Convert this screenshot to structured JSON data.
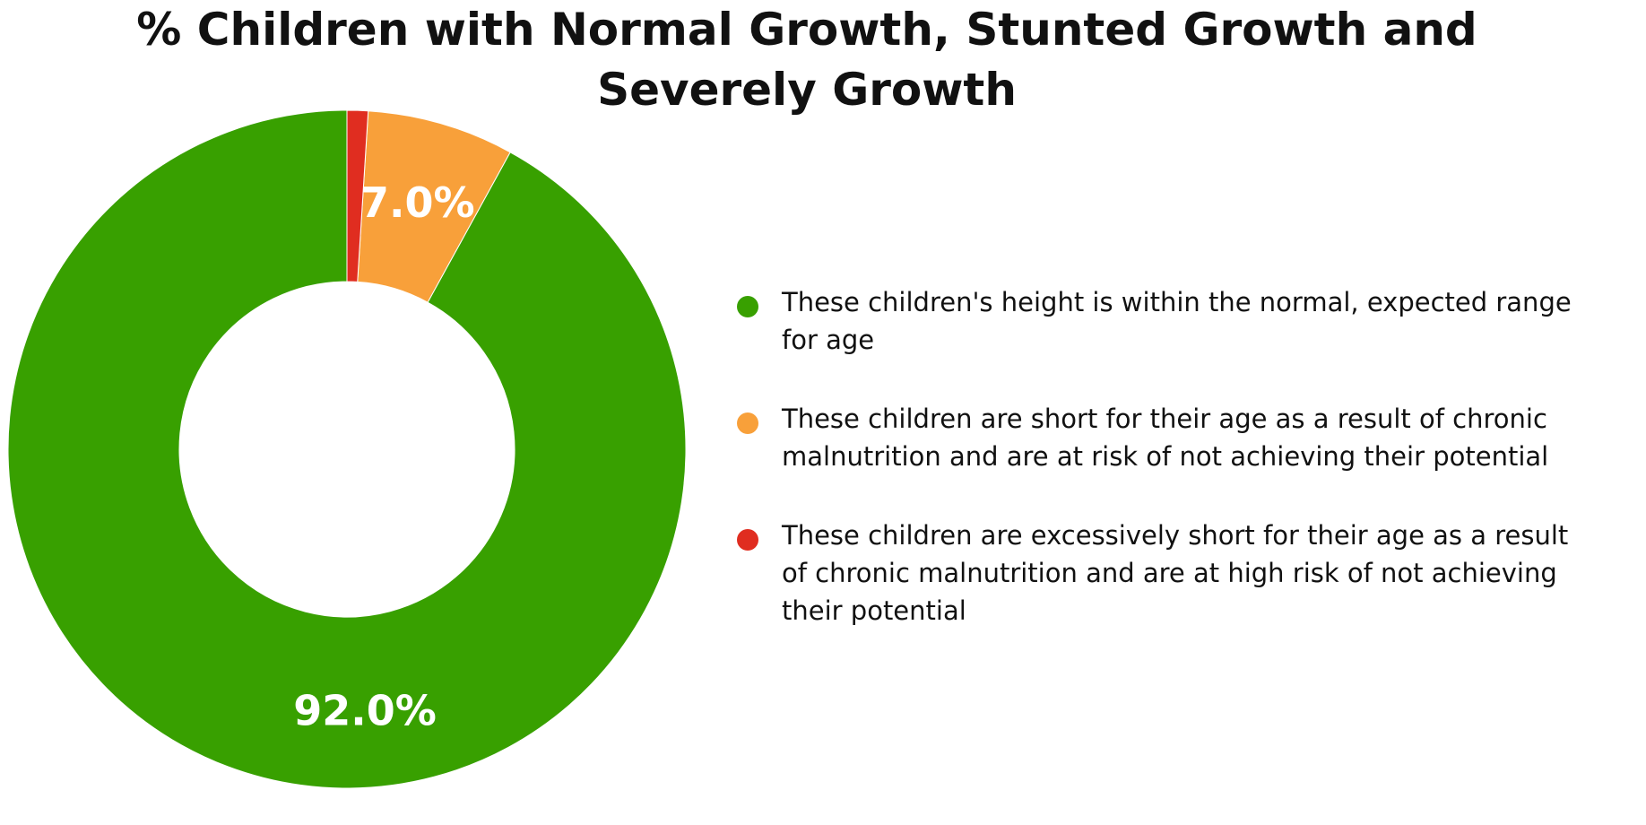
{
  "chart_data": {
    "type": "pie",
    "donut": true,
    "title_lines": [
      "% Children with Normal Growth, Stunted Growth and",
      "Severely Growth"
    ],
    "slices": [
      {
        "label": "These children's height is within the normal, expected range for age",
        "value": 92.0,
        "display": "92.0%",
        "color": "#38a000"
      },
      {
        "label": "These children are short for their age as a result of chronic malnutrition and are at risk of not achieving their potential",
        "value": 7.0,
        "display": "7.0%",
        "color": "#f8a03a"
      },
      {
        "label": "These children are excessively short for their age as a result of chronic malnutrition and are at high risk of not achieving their potential",
        "value": 1.0,
        "display": "",
        "color": "#e02d20"
      }
    ],
    "legend_position": "right"
  }
}
